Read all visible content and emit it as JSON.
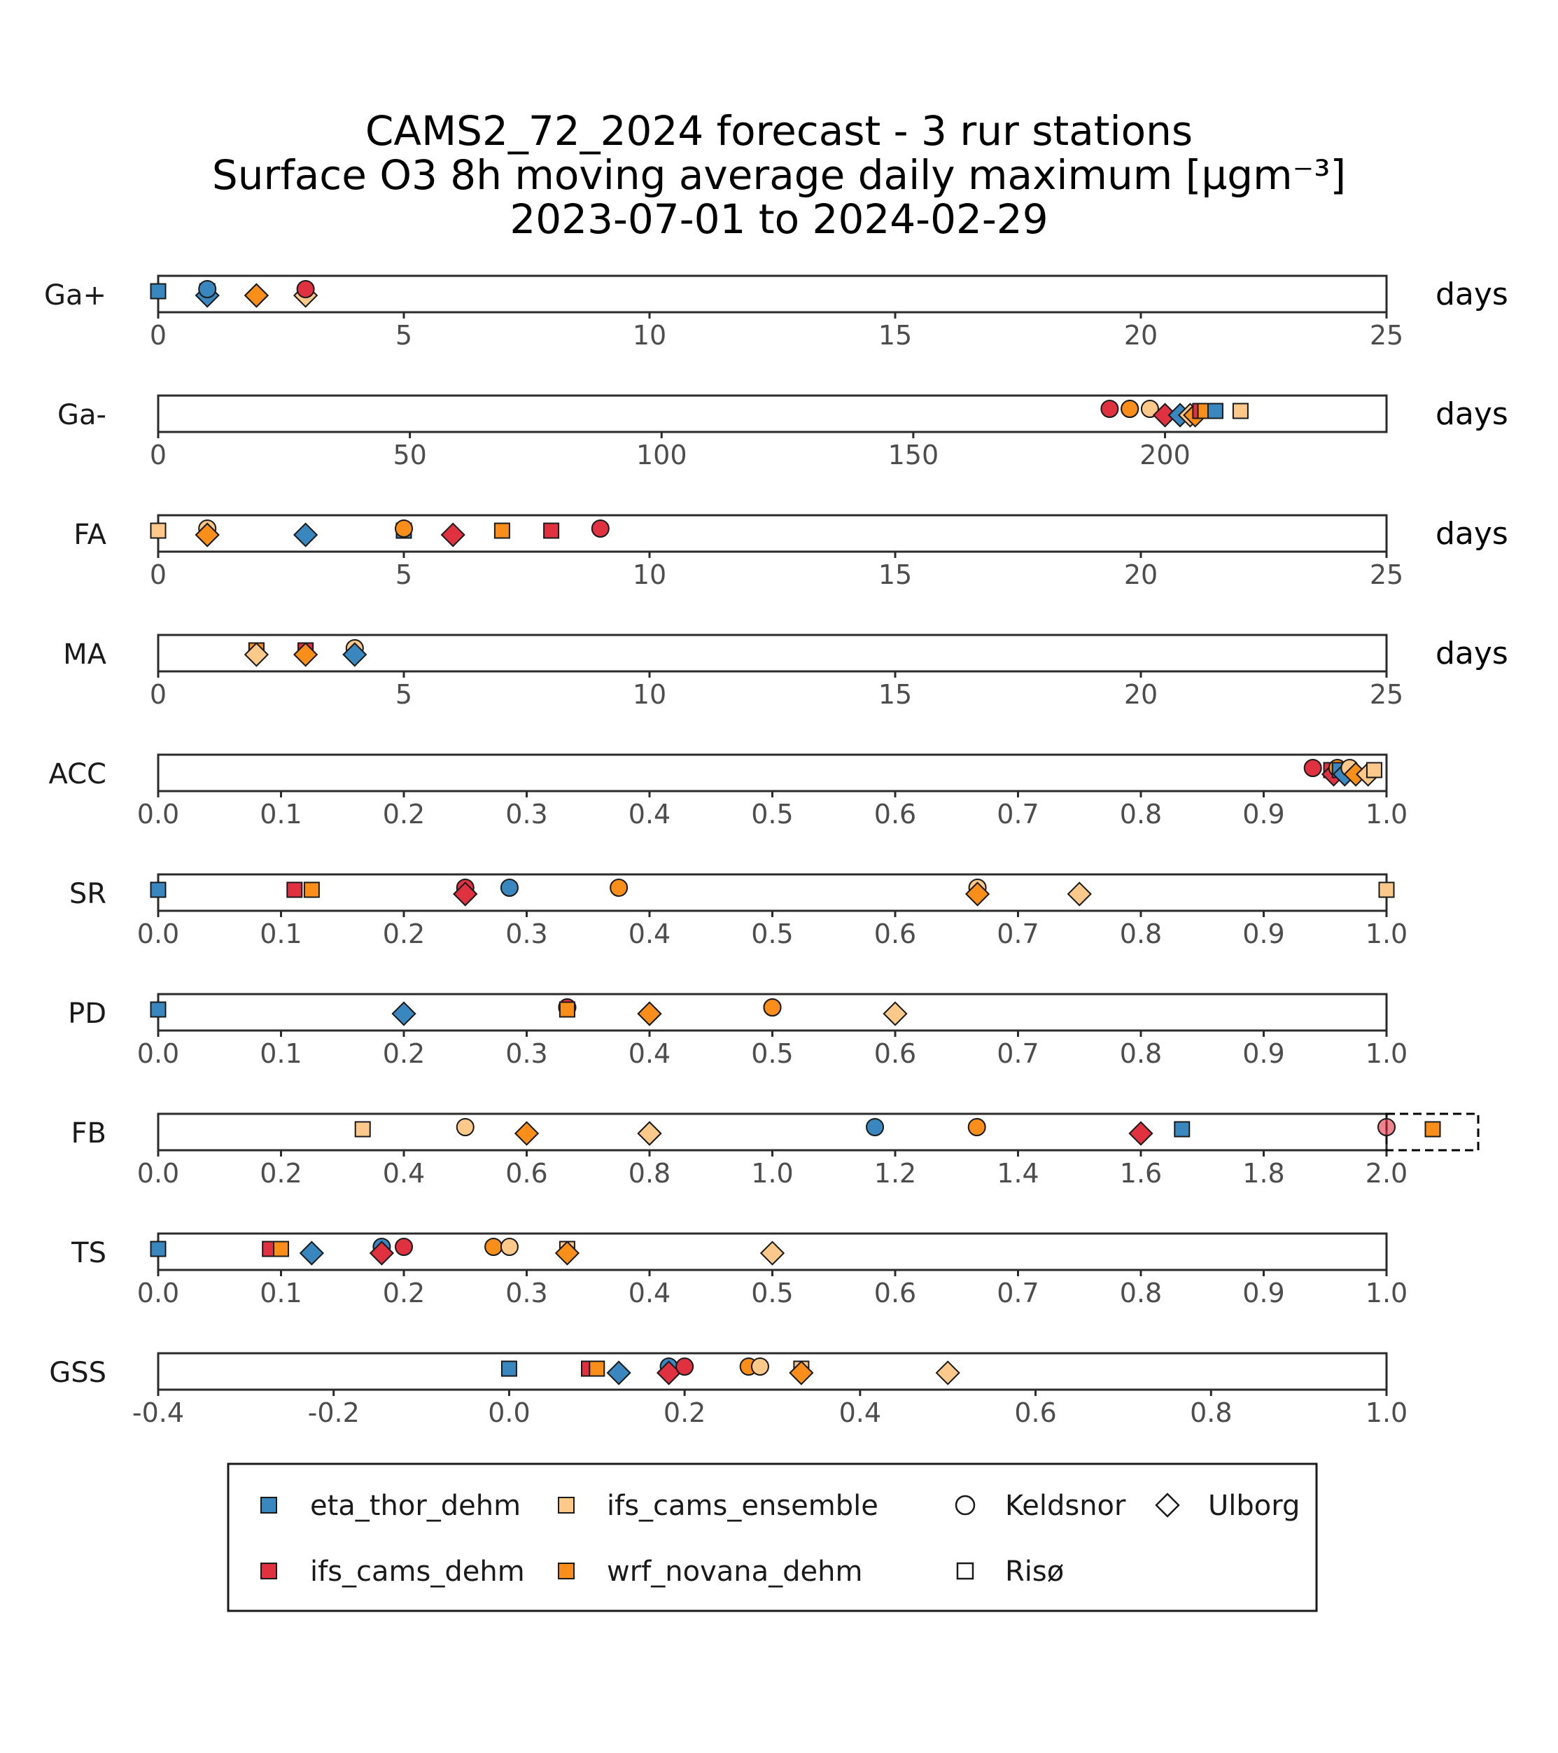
{
  "title": {
    "line1": "CAMS2_72_2024 forecast - 3 rur stations",
    "line2": "Surface O3 8h moving average daily maximum [µgm⁻³]",
    "line3": "2023-07-01 to 2024-02-29"
  },
  "colors": {
    "eta_thor_dehm": "#3a87c0",
    "ifs_cams_dehm": "#e03141",
    "ifs_cams_ensemble": "#fdc98a",
    "wrf_novana_dehm": "#f98e1a",
    "panel_border": "#2b2b2b",
    "tick_label": "#4d4d4d"
  },
  "legend": {
    "models": [
      {
        "key": "eta_thor_dehm",
        "label": "eta_thor_dehm"
      },
      {
        "key": "ifs_cams_ensemble",
        "label": "ifs_cams_ensemble"
      },
      {
        "key": "ifs_cams_dehm",
        "label": "ifs_cams_dehm"
      },
      {
        "key": "wrf_novana_dehm",
        "label": "wrf_novana_dehm"
      }
    ],
    "stations": [
      {
        "key": "Keldsnor",
        "label": "Keldsnor",
        "shape": "circle"
      },
      {
        "key": "Ulborg",
        "label": "Ulborg",
        "shape": "diamond"
      },
      {
        "key": "Risø",
        "label": "Risø",
        "shape": "square"
      }
    ]
  },
  "chart_data": {
    "type": "scatter",
    "panels": [
      {
        "name": "Ga+",
        "unit": "days",
        "xlim": [
          0,
          25
        ],
        "ticks": [
          "0",
          "5",
          "10",
          "15",
          "20",
          "25"
        ],
        "points": [
          {
            "model": "eta_thor_dehm",
            "station": "Risø",
            "x": 0
          },
          {
            "model": "ifs_cams_dehm",
            "station": "Risø",
            "x": 1
          },
          {
            "model": "eta_thor_dehm",
            "station": "Ulborg",
            "x": 1
          },
          {
            "model": "eta_thor_dehm",
            "station": "Keldsnor",
            "x": 1
          },
          {
            "model": "ifs_cams_dehm",
            "station": "Ulborg",
            "x": 2
          },
          {
            "model": "wrf_novana_dehm",
            "station": "Ulborg",
            "x": 2
          },
          {
            "model": "ifs_cams_ensemble",
            "station": "Ulborg",
            "x": 3
          },
          {
            "model": "ifs_cams_dehm",
            "station": "Keldsnor",
            "x": 3
          }
        ]
      },
      {
        "name": "Ga-",
        "unit": "days",
        "xlim": [
          0,
          244
        ],
        "ticks": [
          "0",
          "50",
          "100",
          "150",
          "200"
        ],
        "points": [
          {
            "model": "ifs_cams_dehm",
            "station": "Keldsnor",
            "x": 189
          },
          {
            "model": "eta_thor_dehm",
            "station": "Keldsnor",
            "x": 193
          },
          {
            "model": "wrf_novana_dehm",
            "station": "Keldsnor",
            "x": 193
          },
          {
            "model": "ifs_cams_ensemble",
            "station": "Keldsnor",
            "x": 197
          },
          {
            "model": "ifs_cams_dehm",
            "station": "Ulborg",
            "x": 200
          },
          {
            "model": "eta_thor_dehm",
            "station": "Ulborg",
            "x": 203
          },
          {
            "model": "ifs_cams_ensemble",
            "station": "Ulborg",
            "x": 205
          },
          {
            "model": "wrf_novana_dehm",
            "station": "Ulborg",
            "x": 206
          },
          {
            "model": "ifs_cams_dehm",
            "station": "Risø",
            "x": 207
          },
          {
            "model": "wrf_novana_dehm",
            "station": "Risø",
            "x": 208
          },
          {
            "model": "eta_thor_dehm",
            "station": "Risø",
            "x": 210
          },
          {
            "model": "ifs_cams_ensemble",
            "station": "Risø",
            "x": 215
          }
        ]
      },
      {
        "name": "FA",
        "unit": "days",
        "xlim": [
          0,
          25
        ],
        "ticks": [
          "0",
          "5",
          "10",
          "15",
          "20",
          "25"
        ],
        "points": [
          {
            "model": "ifs_cams_ensemble",
            "station": "Risø",
            "x": 0
          },
          {
            "model": "ifs_cams_ensemble",
            "station": "Keldsnor",
            "x": 1
          },
          {
            "model": "ifs_cams_ensemble",
            "station": "Ulborg",
            "x": 1
          },
          {
            "model": "wrf_novana_dehm",
            "station": "Ulborg",
            "x": 1
          },
          {
            "model": "eta_thor_dehm",
            "station": "Ulborg",
            "x": 3
          },
          {
            "model": "eta_thor_dehm",
            "station": "Risø",
            "x": 5
          },
          {
            "model": "wrf_novana_dehm",
            "station": "Keldsnor",
            "x": 5
          },
          {
            "model": "ifs_cams_dehm",
            "station": "Ulborg",
            "x": 6
          },
          {
            "model": "wrf_novana_dehm",
            "station": "Risø",
            "x": 7
          },
          {
            "model": "ifs_cams_dehm",
            "station": "Risø",
            "x": 8
          },
          {
            "model": "ifs_cams_dehm",
            "station": "Keldsnor",
            "x": 9
          }
        ]
      },
      {
        "name": "MA",
        "unit": "days",
        "xlim": [
          0,
          25
        ],
        "ticks": [
          "0",
          "5",
          "10",
          "15",
          "20",
          "25"
        ],
        "points": [
          {
            "model": "ifs_cams_ensemble",
            "station": "Risø",
            "x": 2
          },
          {
            "model": "wrf_novana_dehm",
            "station": "Risø",
            "x": 2
          },
          {
            "model": "ifs_cams_ensemble",
            "station": "Ulborg",
            "x": 2
          },
          {
            "model": "eta_thor_dehm",
            "station": "Risø",
            "x": 3
          },
          {
            "model": "ifs_cams_dehm",
            "station": "Risø",
            "x": 3
          },
          {
            "model": "wrf_novana_dehm",
            "station": "Ulborg",
            "x": 3
          },
          {
            "model": "ifs_cams_ensemble",
            "station": "Keldsnor",
            "x": 4
          },
          {
            "model": "eta_thor_dehm",
            "station": "Ulborg",
            "x": 4
          }
        ]
      },
      {
        "name": "ACC",
        "unit": "",
        "xlim": [
          0,
          1
        ],
        "ticks": [
          "0.0",
          "0.1",
          "0.2",
          "0.3",
          "0.4",
          "0.5",
          "0.6",
          "0.7",
          "0.8",
          "0.9",
          "1.0"
        ],
        "points": [
          {
            "model": "ifs_cams_dehm",
            "station": "Keldsnor",
            "x": 0.94
          },
          {
            "model": "ifs_cams_dehm",
            "station": "Risø",
            "x": 0.955
          },
          {
            "model": "ifs_cams_dehm",
            "station": "Ulborg",
            "x": 0.957
          },
          {
            "model": "wrf_novana_dehm",
            "station": "Keldsnor",
            "x": 0.96
          },
          {
            "model": "eta_thor_dehm",
            "station": "Risø",
            "x": 0.962
          },
          {
            "model": "eta_thor_dehm",
            "station": "Ulborg",
            "x": 0.966
          },
          {
            "model": "ifs_cams_ensemble",
            "station": "Keldsnor",
            "x": 0.97
          },
          {
            "model": "wrf_novana_dehm",
            "station": "Ulborg",
            "x": 0.975
          },
          {
            "model": "ifs_cams_ensemble",
            "station": "Ulborg",
            "x": 0.985
          },
          {
            "model": "ifs_cams_ensemble",
            "station": "Risø",
            "x": 0.99
          }
        ]
      },
      {
        "name": "SR",
        "unit": "",
        "xlim": [
          0,
          1
        ],
        "ticks": [
          "0.0",
          "0.1",
          "0.2",
          "0.3",
          "0.4",
          "0.5",
          "0.6",
          "0.7",
          "0.8",
          "0.9",
          "1.0"
        ],
        "points": [
          {
            "model": "eta_thor_dehm",
            "station": "Risø",
            "x": 0
          },
          {
            "model": "ifs_cams_dehm",
            "station": "Risø",
            "x": 0.111
          },
          {
            "model": "wrf_novana_dehm",
            "station": "Risø",
            "x": 0.125
          },
          {
            "model": "eta_thor_dehm",
            "station": "Ulborg",
            "x": 0.25
          },
          {
            "model": "ifs_cams_dehm",
            "station": "Keldsnor",
            "x": 0.25
          },
          {
            "model": "ifs_cams_dehm",
            "station": "Ulborg",
            "x": 0.25
          },
          {
            "model": "eta_thor_dehm",
            "station": "Keldsnor",
            "x": 0.286
          },
          {
            "model": "wrf_novana_dehm",
            "station": "Keldsnor",
            "x": 0.375
          },
          {
            "model": "ifs_cams_ensemble",
            "station": "Keldsnor",
            "x": 0.667
          },
          {
            "model": "wrf_novana_dehm",
            "station": "Ulborg",
            "x": 0.667
          },
          {
            "model": "ifs_cams_ensemble",
            "station": "Ulborg",
            "x": 0.75
          },
          {
            "model": "ifs_cams_ensemble",
            "station": "Risø",
            "x": 1.0
          }
        ]
      },
      {
        "name": "PD",
        "unit": "",
        "xlim": [
          0,
          1
        ],
        "ticks": [
          "0.0",
          "0.1",
          "0.2",
          "0.3",
          "0.4",
          "0.5",
          "0.6",
          "0.7",
          "0.8",
          "0.9",
          "1.0"
        ],
        "points": [
          {
            "model": "eta_thor_dehm",
            "station": "Risø",
            "x": 0
          },
          {
            "model": "eta_thor_dehm",
            "station": "Ulborg",
            "x": 0.2
          },
          {
            "model": "eta_thor_dehm",
            "station": "Keldsnor",
            "x": 0.333
          },
          {
            "model": "ifs_cams_dehm",
            "station": "Keldsnor",
            "x": 0.333
          },
          {
            "model": "ifs_cams_ensemble",
            "station": "Risø",
            "x": 0.333
          },
          {
            "model": "wrf_novana_dehm",
            "station": "Risø",
            "x": 0.333
          },
          {
            "model": "ifs_cams_dehm",
            "station": "Ulborg",
            "x": 0.4
          },
          {
            "model": "wrf_novana_dehm",
            "station": "Ulborg",
            "x": 0.4
          },
          {
            "model": "ifs_cams_dehm",
            "station": "Keldsnor",
            "x": 0.5
          },
          {
            "model": "wrf_novana_dehm",
            "station": "Keldsnor",
            "x": 0.5
          },
          {
            "model": "ifs_cams_ensemble",
            "station": "Ulborg",
            "x": 0.6
          }
        ]
      },
      {
        "name": "FB",
        "unit": "",
        "xlim": [
          0,
          2
        ],
        "ticks": [
          "0.0",
          "0.2",
          "0.4",
          "0.6",
          "0.8",
          "1.0",
          "1.2",
          "1.4",
          "1.6",
          "1.8",
          "2.0"
        ],
        "points": [
          {
            "model": "ifs_cams_ensemble",
            "station": "Risø",
            "x": 0.333
          },
          {
            "model": "ifs_cams_ensemble",
            "station": "Keldsnor",
            "x": 0.5
          },
          {
            "model": "wrf_novana_dehm",
            "station": "Ulborg",
            "x": 0.6
          },
          {
            "model": "eta_thor_dehm",
            "station": "Ulborg",
            "x": 0.8
          },
          {
            "model": "ifs_cams_ensemble",
            "station": "Ulborg",
            "x": 0.8
          },
          {
            "model": "eta_thor_dehm",
            "station": "Keldsnor",
            "x": 1.167
          },
          {
            "model": "wrf_novana_dehm",
            "station": "Keldsnor",
            "x": 1.333
          },
          {
            "model": "ifs_cams_dehm",
            "station": "Ulborg",
            "x": 1.6
          },
          {
            "model": "eta_thor_dehm",
            "station": "Risø",
            "x": 1.667
          },
          {
            "model": "ifs_cams_dehm",
            "station": "Keldsnor",
            "x": 2.0
          },
          {
            "model": "ifs_cams_dehm",
            "station": "Risø",
            "x": 2.0,
            "outside": true
          },
          {
            "model": "wrf_novana_dehm",
            "station": "Risø",
            "x": 2.0,
            "outside": true
          }
        ]
      },
      {
        "name": "TS",
        "unit": "",
        "xlim": [
          0,
          1
        ],
        "ticks": [
          "0.0",
          "0.1",
          "0.2",
          "0.3",
          "0.4",
          "0.5",
          "0.6",
          "0.7",
          "0.8",
          "0.9",
          "1.0"
        ],
        "points": [
          {
            "model": "eta_thor_dehm",
            "station": "Risø",
            "x": 0
          },
          {
            "model": "ifs_cams_dehm",
            "station": "Risø",
            "x": 0.091
          },
          {
            "model": "wrf_novana_dehm",
            "station": "Risø",
            "x": 0.1
          },
          {
            "model": "eta_thor_dehm",
            "station": "Ulborg",
            "x": 0.125
          },
          {
            "model": "eta_thor_dehm",
            "station": "Keldsnor",
            "x": 0.182
          },
          {
            "model": "ifs_cams_dehm",
            "station": "Ulborg",
            "x": 0.182
          },
          {
            "model": "ifs_cams_dehm",
            "station": "Keldsnor",
            "x": 0.2
          },
          {
            "model": "wrf_novana_dehm",
            "station": "Keldsnor",
            "x": 0.273
          },
          {
            "model": "ifs_cams_ensemble",
            "station": "Keldsnor",
            "x": 0.286
          },
          {
            "model": "ifs_cams_ensemble",
            "station": "Risø",
            "x": 0.333
          },
          {
            "model": "wrf_novana_dehm",
            "station": "Ulborg",
            "x": 0.333
          },
          {
            "model": "ifs_cams_ensemble",
            "station": "Ulborg",
            "x": 0.5
          }
        ]
      },
      {
        "name": "GSS",
        "unit": "",
        "xlim": [
          -0.4,
          1
        ],
        "ticks": [
          "-0.4",
          "-0.2",
          "0.0",
          "0.2",
          "0.4",
          "0.6",
          "0.8",
          "1.0"
        ],
        "points": [
          {
            "model": "eta_thor_dehm",
            "station": "Risø",
            "x": 0
          },
          {
            "model": "ifs_cams_dehm",
            "station": "Risø",
            "x": 0.091
          },
          {
            "model": "wrf_novana_dehm",
            "station": "Risø",
            "x": 0.1
          },
          {
            "model": "eta_thor_dehm",
            "station": "Ulborg",
            "x": 0.125
          },
          {
            "model": "eta_thor_dehm",
            "station": "Keldsnor",
            "x": 0.182
          },
          {
            "model": "ifs_cams_dehm",
            "station": "Ulborg",
            "x": 0.182
          },
          {
            "model": "ifs_cams_dehm",
            "station": "Keldsnor",
            "x": 0.2
          },
          {
            "model": "wrf_novana_dehm",
            "station": "Keldsnor",
            "x": 0.273
          },
          {
            "model": "ifs_cams_ensemble",
            "station": "Keldsnor",
            "x": 0.286
          },
          {
            "model": "ifs_cams_ensemble",
            "station": "Risø",
            "x": 0.333
          },
          {
            "model": "wrf_novana_dehm",
            "station": "Ulborg",
            "x": 0.333
          },
          {
            "model": "ifs_cams_ensemble",
            "station": "Ulborg",
            "x": 0.5
          }
        ]
      }
    ]
  }
}
